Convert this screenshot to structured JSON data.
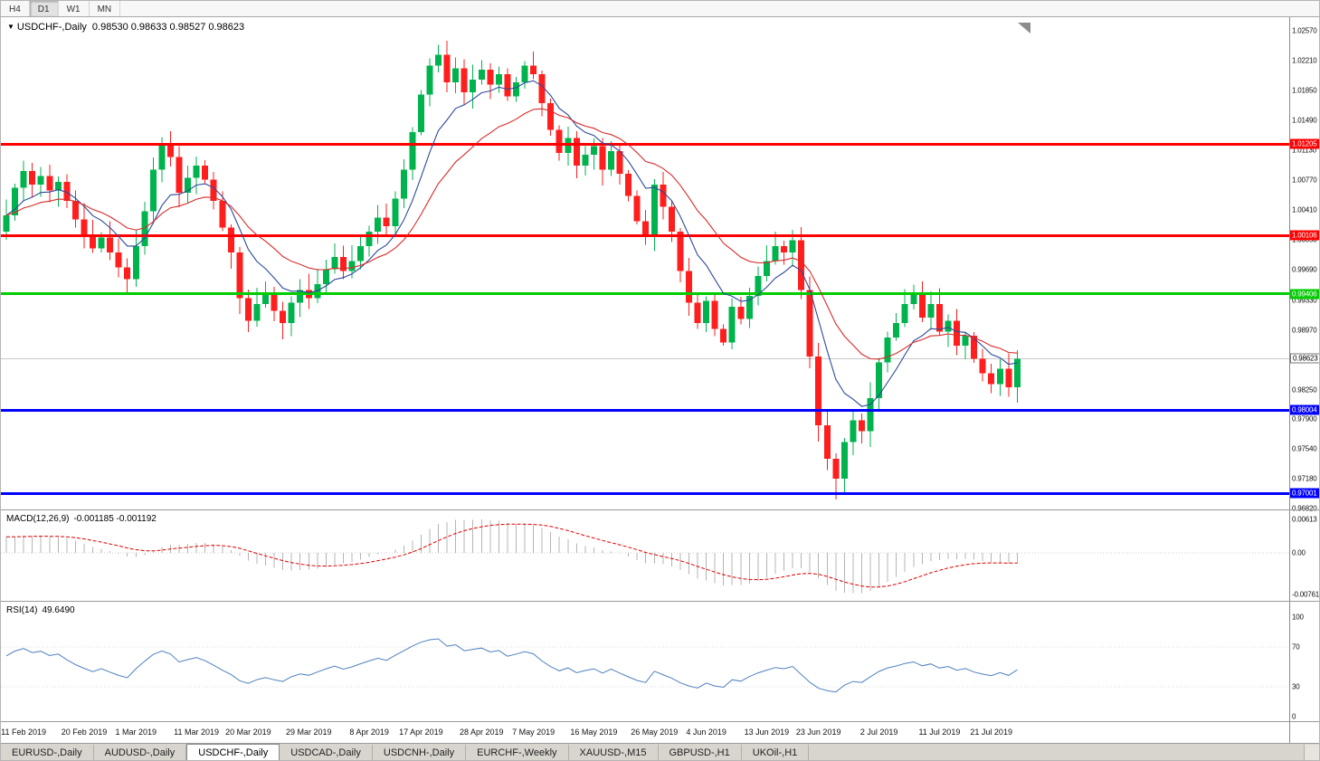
{
  "toolbar": {
    "buttons": [
      "H4",
      "D1",
      "W1",
      "MN"
    ],
    "active": "D1"
  },
  "header": {
    "icon": "▼",
    "symbol": "USDCHF-,Daily",
    "ohlc": "0.98530 0.98633 0.98527 0.98623"
  },
  "colors": {
    "candle_up": "#00b34d",
    "candle_down": "#ff1e1e",
    "ma_fast": "#2b4a9b",
    "ma_slow": "#d92b2b",
    "macd_hist": "#b4b4b4",
    "macd_signal": "#e00000",
    "rsi_line": "#4f81bd",
    "current_price_line": "#c8c8c8",
    "resistance": "#ff0000",
    "support_green": "#00cc00",
    "support_blue": "#0000ff"
  },
  "chart_data": {
    "type": "candlestick",
    "title": "USDCHF-,Daily",
    "ohlc_header": {
      "open": "0.98530",
      "high": "0.98633",
      "low": "0.98527",
      "close": "0.98623"
    },
    "price_axis_range": {
      "max": 1.0257,
      "min": 0.9682
    },
    "price_axis_ticks": [
      "1.02570",
      "1.02210",
      "1.01850",
      "1.01490",
      "1.01130",
      "1.00770",
      "1.00410",
      "1.00050",
      "0.99690",
      "0.99330",
      "0.98970",
      "0.98250",
      "0.97900",
      "0.97540",
      "0.97180",
      "0.96820"
    ],
    "first_open": 1.0015,
    "closes": [
      1.0035,
      1.0068,
      1.0088,
      1.0072,
      1.0082,
      1.0065,
      1.0075,
      1.0052,
      1.003,
      1.0012,
      0.9995,
      1.0008,
      0.999,
      0.9972,
      0.9958,
      0.9998,
      1.004,
      1.009,
      1.012,
      1.0105,
      1.0062,
      1.008,
      1.0095,
      1.0078,
      1.0052,
      1.002,
      0.999,
      0.9935,
      0.9908,
      0.9928,
      0.994,
      0.992,
      0.9905,
      0.993,
      0.9945,
      0.9935,
      0.9952,
      0.997,
      0.9985,
      0.9968,
      0.998,
      0.9998,
      1.0015,
      1.0032,
      1.0022,
      1.0055,
      1.009,
      1.0135,
      1.018,
      1.0215,
      1.0228,
      1.0195,
      1.0212,
      1.0183,
      1.0198,
      1.021,
      1.0192,
      1.0205,
      1.0178,
      1.0195,
      1.0215,
      1.0205,
      1.017,
      1.0138,
      1.011,
      1.0128,
      1.0095,
      1.0108,
      1.0118,
      1.009,
      1.0112,
      1.0085,
      1.0058,
      1.0028,
      1.001,
      1.0072,
      1.0045,
      1.0015,
      0.9968,
      0.993,
      0.9905,
      0.9932,
      0.9898,
      0.9882,
      0.9925,
      0.991,
      0.9938,
      0.9962,
      0.998,
      0.9998,
      0.999,
      1.0005,
      0.9945,
      0.9865,
      0.9782,
      0.9742,
      0.9718,
      0.9762,
      0.9788,
      0.9775,
      0.9815,
      0.9858,
      0.9888,
      0.9905,
      0.9928,
      0.9942,
      0.9912,
      0.9928,
      0.9895,
      0.9908,
      0.9878,
      0.989,
      0.9862,
      0.9845,
      0.9832,
      0.985,
      0.9828,
      0.98623
    ],
    "wick_overrides": {
      "50": {
        "high": 1.024
      },
      "96": {
        "low": 0.9693
      }
    },
    "x_labels": [
      {
        "label": "11 Feb 2019",
        "i": 2
      },
      {
        "label": "20 Feb 2019",
        "i": 9
      },
      {
        "label": "1 Mar 2019",
        "i": 15
      },
      {
        "label": "11 Mar 2019",
        "i": 22
      },
      {
        "label": "20 Mar 2019",
        "i": 28
      },
      {
        "label": "29 Mar 2019",
        "i": 35
      },
      {
        "label": "8 Apr 2019",
        "i": 42
      },
      {
        "label": "17 Apr 2019",
        "i": 48
      },
      {
        "label": "28 Apr 2019",
        "i": 55
      },
      {
        "label": "7 May 2019",
        "i": 61
      },
      {
        "label": "16 May 2019",
        "i": 68
      },
      {
        "label": "26 May 2019",
        "i": 75
      },
      {
        "label": "4 Jun 2019",
        "i": 81
      },
      {
        "label": "13 Jun 2019",
        "i": 88
      },
      {
        "label": "23 Jun 2019",
        "i": 94
      },
      {
        "label": "2 Jul 2019",
        "i": 101
      },
      {
        "label": "11 Jul 2019",
        "i": 108
      },
      {
        "label": "21 Jul 2019",
        "i": 114
      }
    ],
    "h_lines": [
      {
        "price": 1.01205,
        "label": "1.01205",
        "color": "#ff0000",
        "type": "resistance"
      },
      {
        "price": 1.00106,
        "label": "1.00106",
        "color": "#ff0000",
        "type": "resistance"
      },
      {
        "price": 0.99406,
        "label": "0.99406",
        "color": "#00cc00",
        "type": "support"
      },
      {
        "price": 0.98004,
        "label": "0.98004",
        "color": "#0000ff",
        "type": "support"
      },
      {
        "price": 0.97001,
        "label": "0.97001",
        "color": "#0000ff",
        "type": "support"
      }
    ],
    "current_price": {
      "value": 0.98623,
      "label": "0.98623"
    },
    "moving_averages": [
      {
        "name": "fast",
        "period": 8,
        "color": "#2b4a9b"
      },
      {
        "name": "slow",
        "period": 18,
        "color": "#d92b2b"
      }
    ],
    "macd": {
      "label": "MACD(12,26,9)",
      "values": "-0.001185 -0.001192",
      "fast": 12,
      "slow": 26,
      "signal": 9,
      "axis_labels": [
        "0.00613",
        "0.00",
        "-0.00761"
      ]
    },
    "rsi": {
      "label": "RSI(14)",
      "value": "49.6490",
      "period": 14,
      "axis_labels": [
        "100",
        "70",
        "30",
        "0"
      ],
      "levels": [
        70,
        30
      ]
    }
  },
  "tabs": {
    "items": [
      "EURUSD-,Daily",
      "AUDUSD-,Daily",
      "USDCHF-,Daily",
      "USDCAD-,Daily",
      "USDCNH-,Daily",
      "EURCHF-,Weekly",
      "XAUUSD-,M15",
      "GBPUSD-,H1",
      "UKOil-,H1"
    ],
    "active_index": 2
  }
}
